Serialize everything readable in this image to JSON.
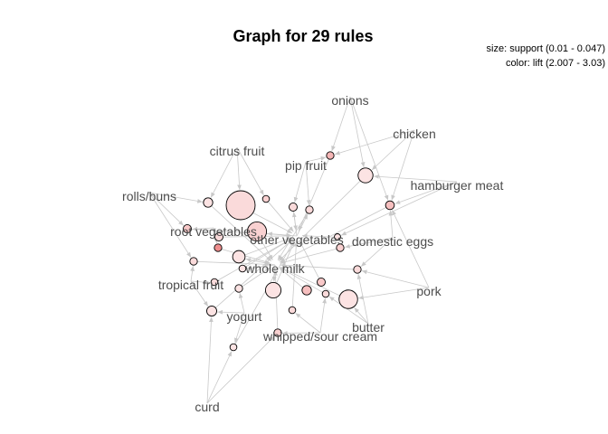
{
  "title": "Graph for 29 rules",
  "legend": {
    "size": "size: support (0.01 - 0.047)",
    "color": "color: lift (2.007 - 3.03)"
  },
  "colors": {
    "edge": "#c8c8c8",
    "label": "#4d4d4d",
    "lift_low": "#fdecec",
    "lift_high": "#ef8e8e"
  },
  "items": [
    {
      "label": "onions"
    },
    {
      "label": "chicken"
    },
    {
      "label": "citrus fruit"
    },
    {
      "label": "pip fruit"
    },
    {
      "label": "hamburger meat"
    },
    {
      "label": "rolls/buns"
    },
    {
      "label": "root vegetables"
    },
    {
      "label": "other vegetables"
    },
    {
      "label": "domestic eggs"
    },
    {
      "label": "whole milk"
    },
    {
      "label": "tropical fruit"
    },
    {
      "label": "pork"
    },
    {
      "label": "yogurt"
    },
    {
      "label": "butter"
    },
    {
      "label": "whipped/sour cream"
    },
    {
      "label": "curd"
    }
  ],
  "chart_data": {
    "type": "network",
    "title": "Graph for 29 rules",
    "size_encoding": "support",
    "size_range": [
      0.01,
      0.047
    ],
    "color_encoding": "lift",
    "color_range": [
      2.007,
      3.03
    ],
    "items": [
      "onions",
      "chicken",
      "citrus fruit",
      "pip fruit",
      "hamburger meat",
      "rolls/buns",
      "root vegetables",
      "other vegetables",
      "domestic eggs",
      "whole milk",
      "tropical fruit",
      "pork",
      "yogurt",
      "butter",
      "whipped/sour cream",
      "curd"
    ],
    "rules": [
      {
        "support": 0.012,
        "lift": 2.6
      },
      {
        "support": 0.024,
        "lift": 2.1
      },
      {
        "support": 0.047,
        "lift": 2.2
      },
      {
        "support": 0.014,
        "lift": 2.5
      },
      {
        "support": 0.011,
        "lift": 2.3
      },
      {
        "support": 0.015,
        "lift": 2.1
      },
      {
        "support": 0.013,
        "lift": 2.2
      },
      {
        "support": 0.012,
        "lift": 2.2
      },
      {
        "support": 0.013,
        "lift": 2.4
      },
      {
        "support": 0.031,
        "lift": 2.3
      },
      {
        "support": 0.01,
        "lift": 2.1
      },
      {
        "support": 0.012,
        "lift": 2.3
      },
      {
        "support": 0.013,
        "lift": 2.2
      },
      {
        "support": 0.012,
        "lift": 3.03
      },
      {
        "support": 0.02,
        "lift": 2.1
      },
      {
        "support": 0.012,
        "lift": 2.2
      },
      {
        "support": 0.011,
        "lift": 2.1
      },
      {
        "support": 0.012,
        "lift": 2.2
      },
      {
        "support": 0.011,
        "lift": 2.2
      },
      {
        "support": 0.012,
        "lift": 2.1
      },
      {
        "support": 0.025,
        "lift": 2.1
      },
      {
        "support": 0.015,
        "lift": 2.5
      },
      {
        "support": 0.013,
        "lift": 2.4
      },
      {
        "support": 0.011,
        "lift": 2.2
      },
      {
        "support": 0.011,
        "lift": 2.2
      },
      {
        "support": 0.03,
        "lift": 2.1
      },
      {
        "support": 0.016,
        "lift": 2.1
      },
      {
        "support": 0.012,
        "lift": 2.3
      },
      {
        "support": 0.011,
        "lift": 2.1
      }
    ]
  }
}
